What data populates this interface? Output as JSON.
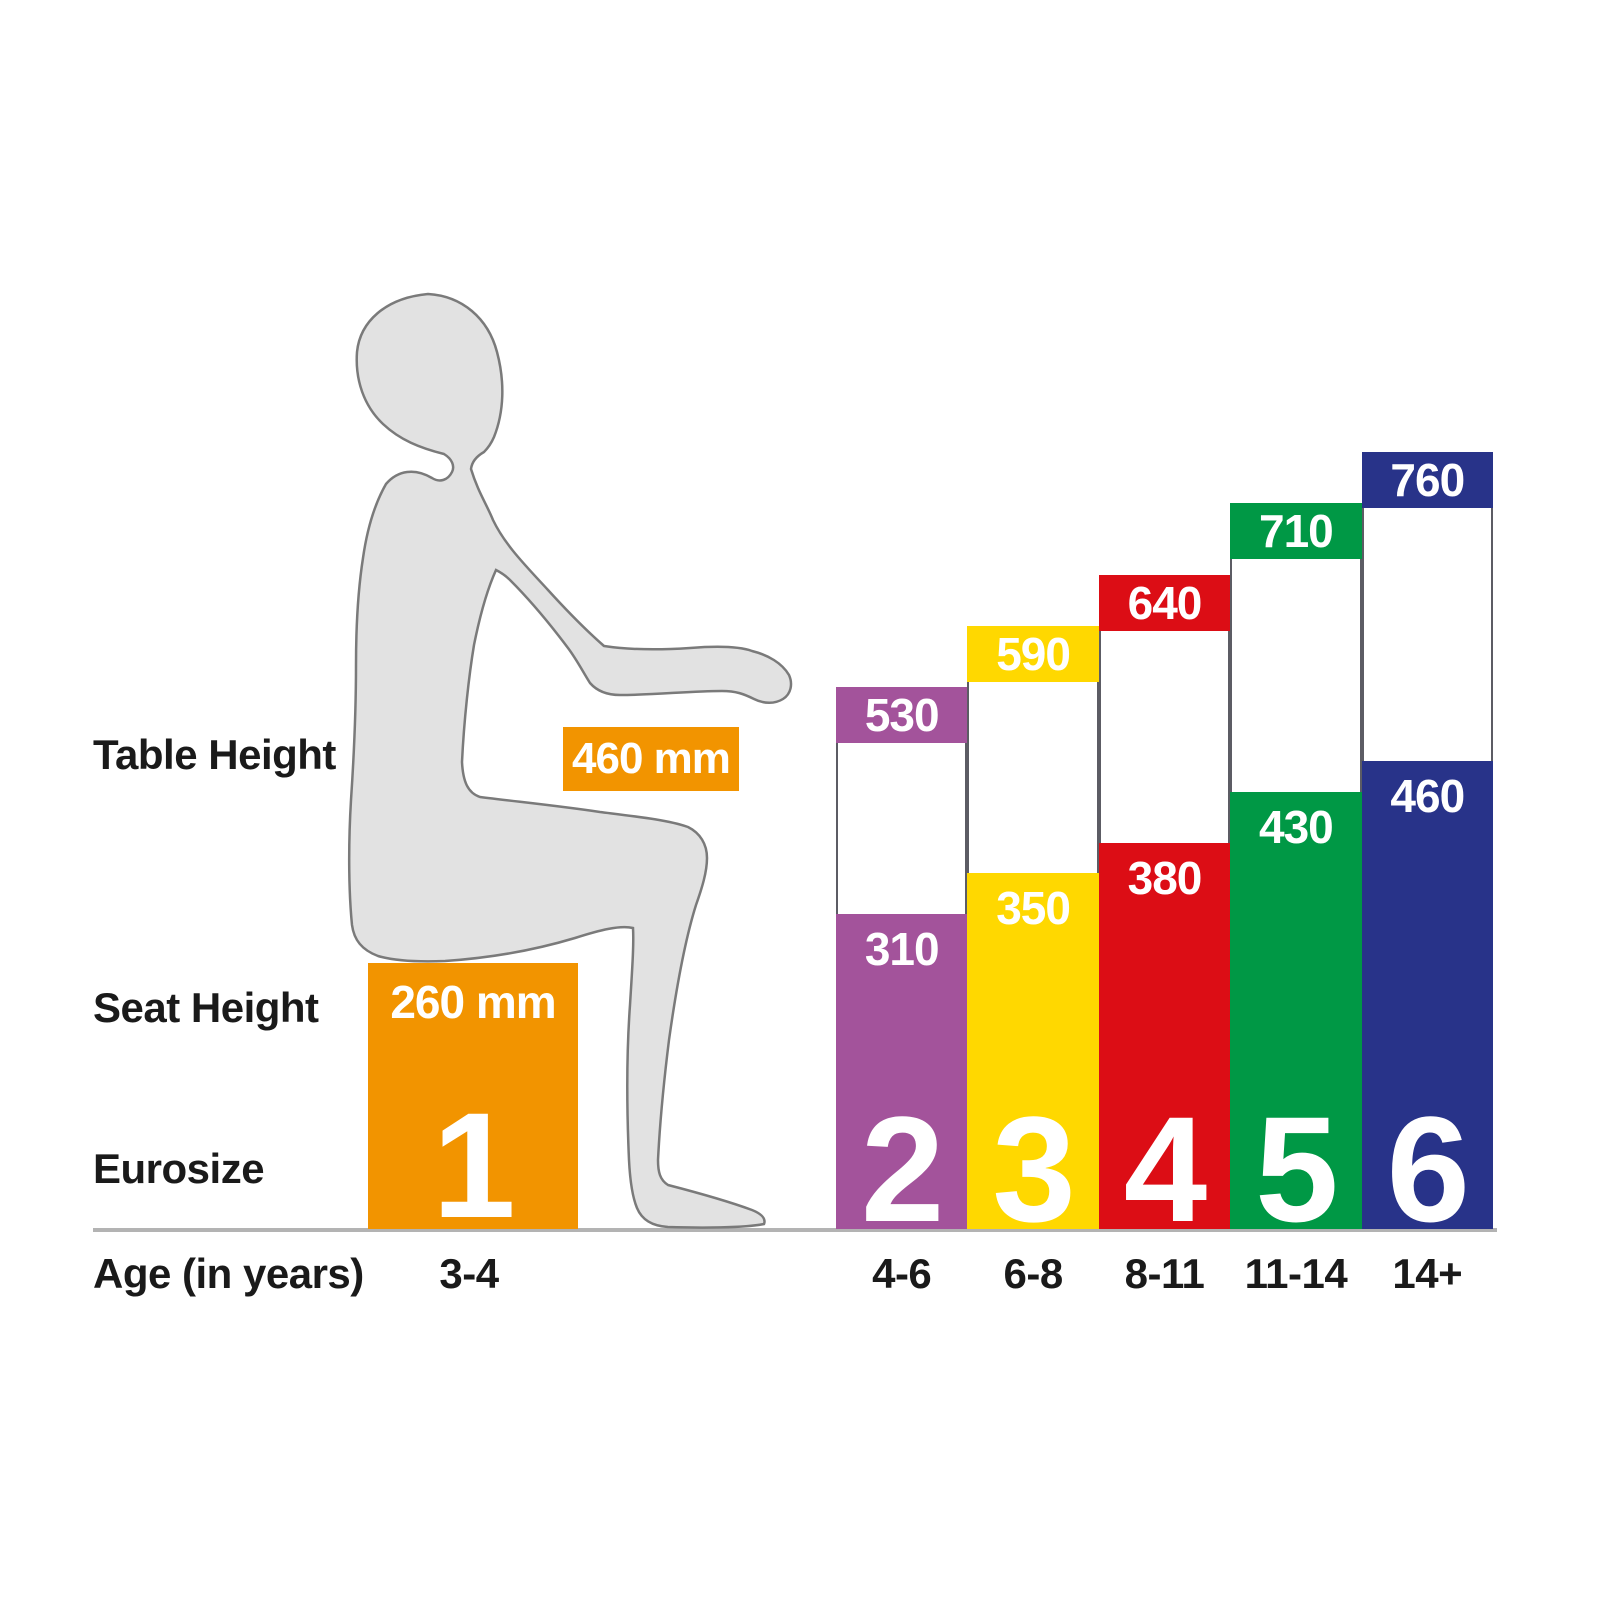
{
  "labels": {
    "table_height": "Table Height",
    "seat_height": "Seat Height",
    "eurosize": "Eurosize",
    "age": "Age (in years)"
  },
  "chart_data": {
    "type": "bar",
    "categories": [
      "3-4",
      "4-6",
      "6-8",
      "8-11",
      "11-14",
      "14+"
    ],
    "eurosizes": [
      "1",
      "2",
      "3",
      "4",
      "5",
      "6"
    ],
    "unit": "mm",
    "series": [
      {
        "name": "Table Height",
        "values": [
          460,
          530,
          590,
          640,
          710,
          760
        ]
      },
      {
        "name": "Seat Height",
        "values": [
          260,
          310,
          350,
          380,
          430,
          460
        ]
      }
    ],
    "colors": [
      "#F29400",
      "#A3539B",
      "#FFD800",
      "#DC0D15",
      "#009845",
      "#283389"
    ],
    "ylim": [
      0,
      760
    ],
    "grid": false,
    "legend_position": "left-labels"
  },
  "style_colors": {
    "text": "#1a1a1a",
    "value_text": "#ffffff",
    "ground_line": "#b3b3b3",
    "column_border": "#5c5c64",
    "figure_fill": "#e2e2e2",
    "figure_outline": "#7a7a7a",
    "background": "#ffffff"
  }
}
